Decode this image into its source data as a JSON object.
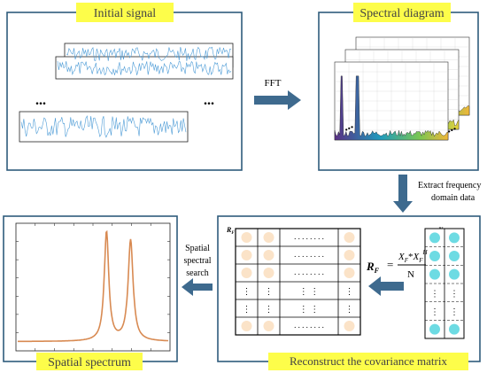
{
  "colors": {
    "panel_border": "#2f5b7c",
    "label_fill": "#fdfd4a",
    "arrow": "#3e6a8e",
    "signal_line": "#4c9bd6",
    "spectrum_line": "#d88a52",
    "matrix_cell": "#fbe3c8",
    "vector_cell": "#6ddbe3"
  },
  "panels": {
    "initial_signal": {
      "label": "Initial signal",
      "ellipsis": "..."
    },
    "spectral_diagram": {
      "label": "Spectral diagram",
      "ellipsis": "..."
    },
    "covariance": {
      "label": "Reconstruct the covariance matrix",
      "matrix_label": "R",
      "matrix_label_sub": "F",
      "vector_label": "X",
      "vector_label_sub": "F",
      "equation": {
        "lhs": "R",
        "lhs_sub": "F",
        "equals": "=",
        "numerator_a": "X",
        "numerator_a_sub": "F",
        "star": "*",
        "numerator_b": "X",
        "numerator_b_sub": "F",
        "numerator_b_sup": "H",
        "denominator": "N"
      },
      "dots": ". . . . . . . .",
      "vdots": "⋮"
    },
    "spatial_spectrum": {
      "label": "Spatial spectrum"
    }
  },
  "arrows": {
    "fft": "FFT",
    "extract_line1": "Extract frequency",
    "extract_line2": "domain data",
    "search_line1": "Spatial",
    "search_line2": "spectral",
    "search_line3": "search"
  },
  "icons": {
    "arrow": "block-arrow-icon"
  }
}
